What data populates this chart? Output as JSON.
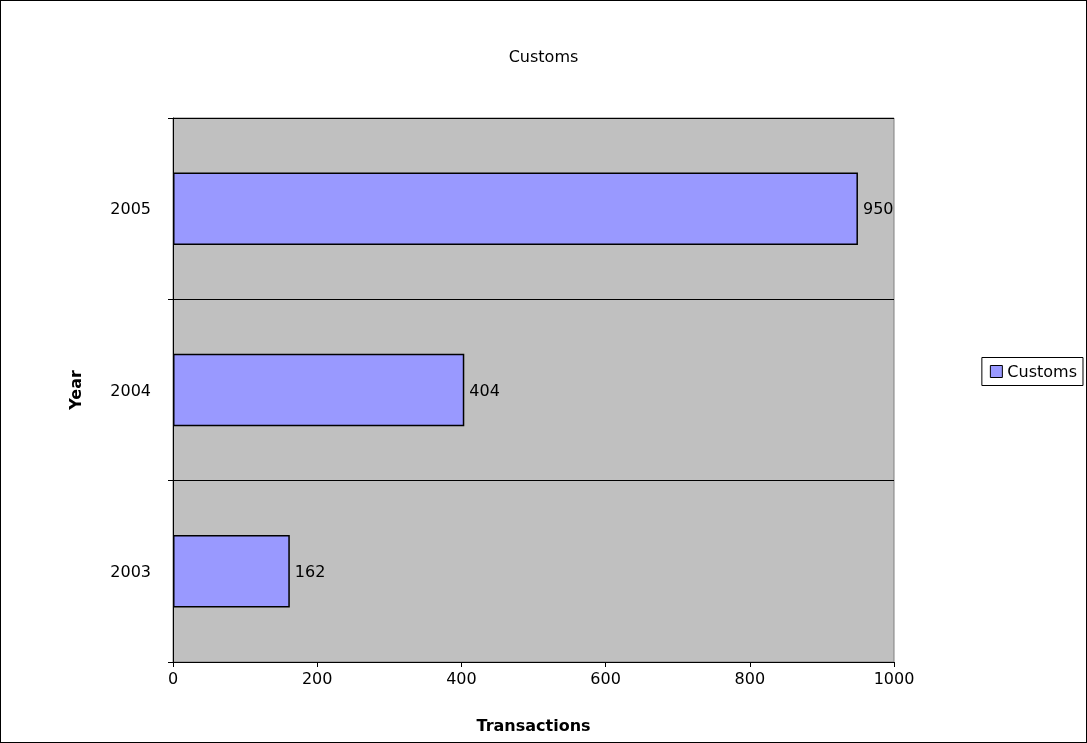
{
  "chart_data": {
    "type": "bar",
    "orientation": "horizontal",
    "title": "Customs",
    "xlabel": "Transactions",
    "ylabel": "Year",
    "categories": [
      "2005",
      "2004",
      "2003"
    ],
    "series": [
      {
        "name": "Customs",
        "color": "#9999ff",
        "values": [
          950,
          404,
          162
        ]
      }
    ],
    "xlim": [
      0,
      1000
    ],
    "xticks": [
      0,
      200,
      400,
      600,
      800,
      1000
    ],
    "grid": "y",
    "legend": "right",
    "data_labels": true
  }
}
